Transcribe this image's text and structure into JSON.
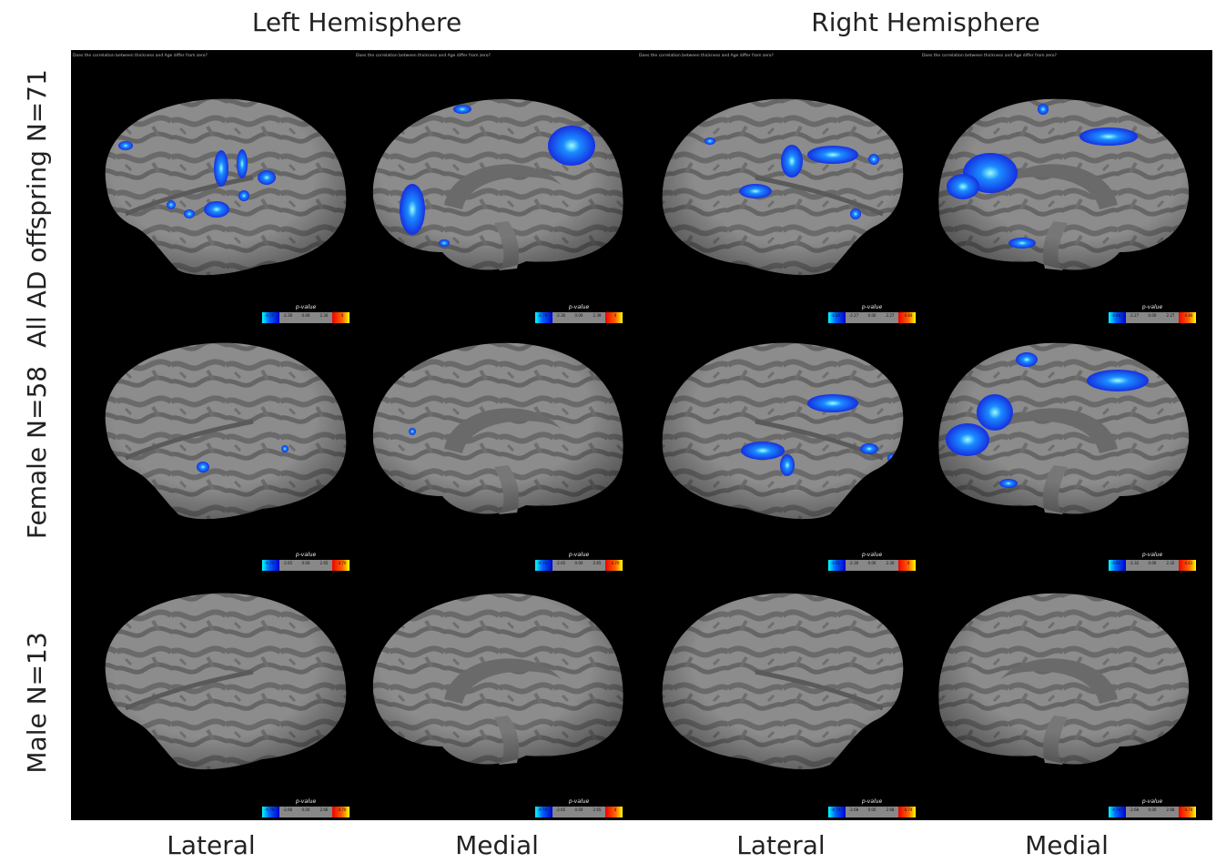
{
  "column_headers": [
    "Left Hemisphere",
    "Right Hemisphere"
  ],
  "row_labels": [
    "All AD offspring N=71",
    "Female N=58",
    "Male N=13"
  ],
  "view_labels": [
    "Lateral",
    "Medial",
    "Lateral",
    "Medial"
  ],
  "panel_captions": [
    "Does the correlation between thickness and Age differ from zero?",
    "Does the correlation between thickness and Age differ from zero?",
    "Does the correlation between thickness and Age differ from zero?",
    "Does the correlation between thickness and Age differ from zero?"
  ],
  "colorbars": [
    [
      {
        "title": "p-value",
        "ticks": [
          "-4.79",
          "-2.30",
          "0.00",
          "2.30",
          "4"
        ]
      },
      {
        "title": "p-value",
        "ticks": [
          "-4.79",
          "-2.30",
          "0.00",
          "2.39",
          "4"
        ]
      },
      {
        "title": "p-value",
        "ticks": [
          "-4.84",
          "-2.27",
          "0.00",
          "2.27",
          "4.84"
        ]
      },
      {
        "title": "p-value",
        "ticks": [
          "-4.84",
          "-2.27",
          "0.00",
          "2.27",
          "4.84"
        ]
      }
    ],
    [
      {
        "title": "p-value",
        "ticks": [
          "-4.70",
          "-2.65",
          "0.00",
          "2.65",
          "4.70"
        ]
      },
      {
        "title": "p-value",
        "ticks": [
          "-4.70",
          "-2.65",
          "0.00",
          "2.65",
          "4.70"
        ]
      },
      {
        "title": "p-value",
        "ticks": [
          "-4.61",
          "-2.30",
          "0.00",
          "2.30",
          "4"
        ]
      },
      {
        "title": "p-value",
        "ticks": [
          "-4.61",
          "-2.32",
          "0.00",
          "2.32",
          "4.61"
        ]
      }
    ],
    [
      {
        "title": "p-value",
        "ticks": [
          "-4.70",
          "-2.66",
          "0.00",
          "2.66",
          "4.70"
        ]
      },
      {
        "title": "p-value",
        "ticks": [
          "-4.70",
          "-2.65",
          "0.00",
          "2.65",
          "4"
        ]
      },
      {
        "title": "p-value",
        "ticks": [
          "-4.74",
          "-2.68",
          "0.00",
          "2.68",
          "4.74"
        ]
      },
      {
        "title": "p-value",
        "ticks": [
          "-4.74",
          "-2.68",
          "0.00",
          "2.68",
          "4.74"
        ]
      }
    ]
  ]
}
